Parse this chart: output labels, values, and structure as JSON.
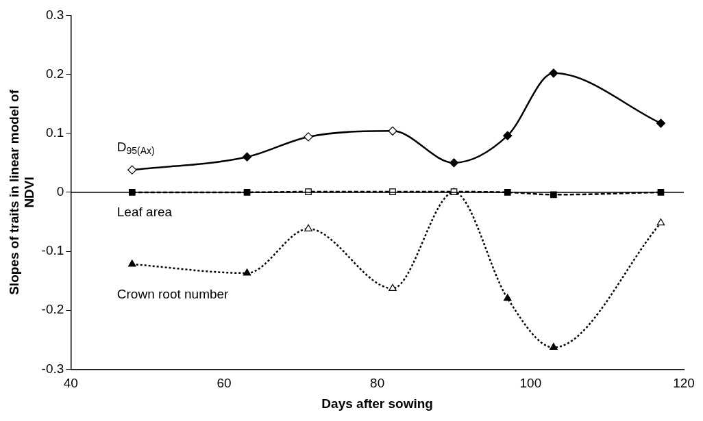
{
  "chart_data": {
    "type": "line",
    "xlabel": "Days after sowing",
    "ylabel": "Slopes of traits in linear model of NDVI",
    "xlim": [
      40,
      120
    ],
    "xticks": [
      40,
      60,
      80,
      100,
      120
    ],
    "ylim": [
      -0.3,
      0.3
    ],
    "yticks": [
      -0.3,
      -0.2,
      -0.1,
      0,
      0.1,
      0.2,
      0.3
    ],
    "grid": false,
    "legend": false,
    "x": [
      48,
      63,
      71,
      82,
      90,
      97,
      103,
      117
    ],
    "ref_lines": [
      {
        "axis": "y",
        "value": 0,
        "color": "#000000",
        "line_style": "solid"
      }
    ],
    "series": [
      {
        "name": "D$_{95(Ax)}$",
        "color": "#000000",
        "marker": "diamond",
        "line_style": "solid",
        "values": [
          0.038,
          0.06,
          0.094,
          0.104,
          0.05,
          0.096,
          0.202,
          0.117
        ],
        "colors": [
          "#ffffff",
          "#000000",
          "#ffffff",
          "#ffffff",
          "#000000",
          "#000000",
          "#000000",
          "#000000"
        ]
      },
      {
        "name": "Leaf area",
        "color": "#000000",
        "marker": "square",
        "line_style": "dashed",
        "values": [
          0,
          0,
          0.001,
          0.001,
          0.001,
          0,
          -0.004,
          0
        ],
        "colors": [
          "#000000",
          "#000000",
          "#ffffff",
          "#ffffff",
          "#ffffff",
          "#000000",
          "#000000",
          "#000000"
        ]
      },
      {
        "name": "Crown root number",
        "color": "#000000",
        "marker": "triangle",
        "line_style": "dotted",
        "values": [
          -0.122,
          -0.137,
          -0.062,
          -0.163,
          0,
          -0.18,
          -0.263,
          -0.052
        ],
        "colors": [
          "#000000",
          "#000000",
          "#ffffff",
          "#ffffff",
          "#ffffff",
          "#000000",
          "#000000",
          "#ffffff"
        ]
      }
    ]
  }
}
